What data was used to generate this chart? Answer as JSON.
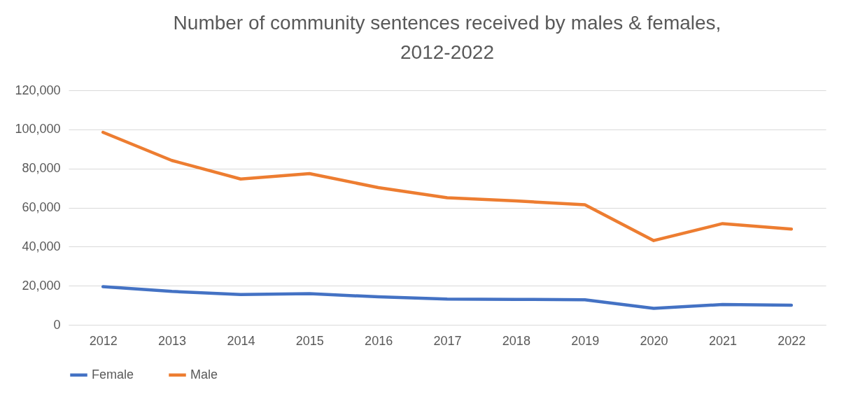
{
  "chart_data": {
    "type": "line",
    "title": "Number of community sentences received by males & females, 2012-2022",
    "categories": [
      "2012",
      "2013",
      "2014",
      "2015",
      "2016",
      "2017",
      "2018",
      "2019",
      "2020",
      "2021",
      "2022"
    ],
    "series": [
      {
        "name": "Female",
        "color": "#4472c4",
        "values": [
          19500,
          17100,
          15500,
          15900,
          14300,
          13200,
          13000,
          12800,
          8400,
          10400,
          10000
        ]
      },
      {
        "name": "Male",
        "color": "#ed7d31",
        "values": [
          98500,
          84100,
          74600,
          77400,
          70200,
          65000,
          63400,
          61400,
          43100,
          51800,
          49000
        ]
      }
    ],
    "ylim": [
      0,
      120000
    ],
    "yticks": [
      0,
      {
        "value": 20000,
        "label": "20,000"
      },
      {
        "value": 40000,
        "label": "40,000"
      },
      {
        "value": 60000,
        "label": "60,000"
      },
      {
        "value": 80000,
        "label": "80,000"
      },
      {
        "value": 100000,
        "label": "100,000"
      },
      {
        "value": 120000,
        "label": "120,000"
      }
    ],
    "grid": "y",
    "legend": "bottom",
    "marker": "none",
    "line_style": "solid"
  }
}
